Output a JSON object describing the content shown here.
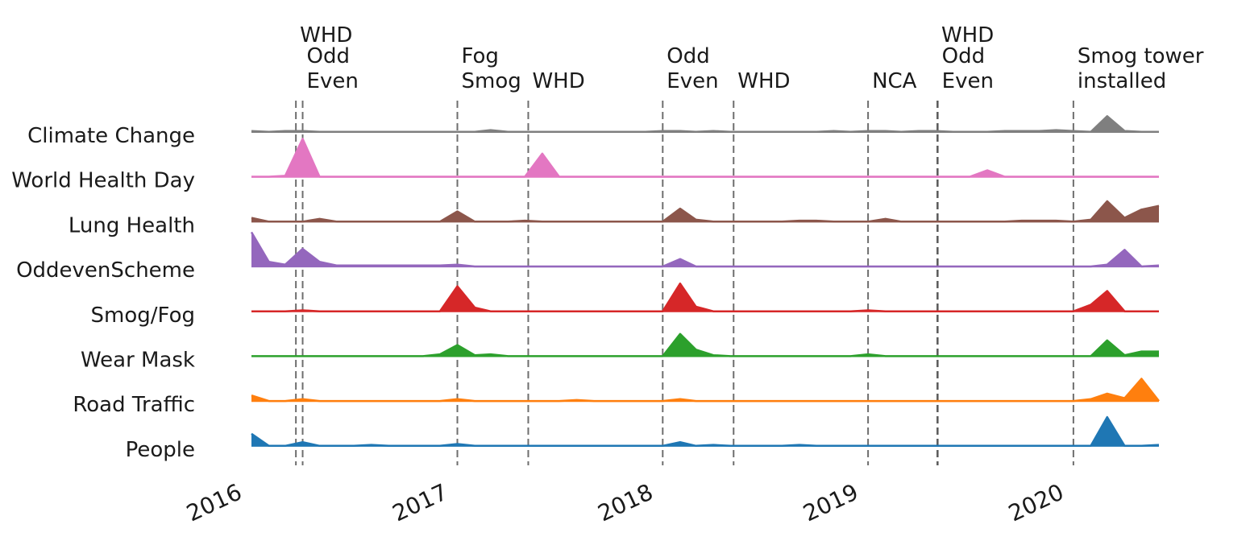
{
  "chart_data": {
    "type": "area",
    "subtype": "ridgeline",
    "title": "",
    "xlabel": "",
    "ylabel": "",
    "x_range": [
      "2016-01",
      "2020-06"
    ],
    "x_ticks": [
      "2016",
      "2017",
      "2018",
      "2019",
      "2020"
    ],
    "months": [
      "2016-01",
      "2016-02",
      "2016-03",
      "2016-04",
      "2016-05",
      "2016-06",
      "2016-07",
      "2016-08",
      "2016-09",
      "2016-10",
      "2016-11",
      "2016-12",
      "2017-01",
      "2017-02",
      "2017-03",
      "2017-04",
      "2017-05",
      "2017-06",
      "2017-07",
      "2017-08",
      "2017-09",
      "2017-10",
      "2017-11",
      "2017-12",
      "2018-01",
      "2018-02",
      "2018-03",
      "2018-04",
      "2018-05",
      "2018-06",
      "2018-07",
      "2018-08",
      "2018-09",
      "2018-10",
      "2018-11",
      "2018-12",
      "2019-01",
      "2019-02",
      "2019-03",
      "2019-04",
      "2019-05",
      "2019-06",
      "2019-07",
      "2019-08",
      "2019-09",
      "2019-10",
      "2019-11",
      "2019-12",
      "2020-01",
      "2020-02",
      "2020-03",
      "2020-04",
      "2020-05",
      "2020-06"
    ],
    "series": [
      {
        "name": "Climate Change",
        "color": "#7f7f7f",
        "values": [
          2,
          1,
          2,
          2,
          1,
          1,
          1,
          1,
          1,
          1,
          1,
          1,
          1,
          1,
          3,
          1,
          1,
          1,
          1,
          1,
          1,
          1,
          1,
          1,
          2,
          2,
          1,
          2,
          1,
          1,
          1,
          1,
          1,
          1,
          2,
          1,
          2,
          2,
          1,
          2,
          2,
          1,
          1,
          1,
          2,
          2,
          2,
          3,
          2,
          1,
          18,
          2,
          1,
          1
        ]
      },
      {
        "name": "World Health Day",
        "color": "#e377c2",
        "values": [
          1,
          1,
          2,
          42,
          1,
          1,
          1,
          1,
          1,
          1,
          1,
          1,
          1,
          1,
          1,
          1,
          1,
          26,
          1,
          1,
          1,
          1,
          1,
          1,
          1,
          1,
          1,
          1,
          1,
          1,
          1,
          1,
          1,
          1,
          1,
          1,
          1,
          1,
          1,
          1,
          1,
          1,
          1,
          8,
          1,
          1,
          1,
          1,
          1,
          1,
          1,
          1,
          1,
          1
        ]
      },
      {
        "name": "Lung Health",
        "color": "#8c564b",
        "values": [
          5,
          1,
          1,
          1,
          4,
          1,
          1,
          1,
          1,
          1,
          1,
          1,
          12,
          1,
          1,
          1,
          2,
          1,
          1,
          1,
          1,
          1,
          1,
          1,
          1,
          15,
          3,
          1,
          1,
          1,
          1,
          1,
          2,
          2,
          1,
          1,
          1,
          4,
          1,
          1,
          1,
          1,
          1,
          1,
          1,
          2,
          2,
          2,
          1,
          3,
          23,
          5,
          14,
          18
        ]
      },
      {
        "name": "OddevenScheme",
        "color": "#9467bd",
        "values": [
          38,
          6,
          3,
          20,
          6,
          2,
          2,
          2,
          2,
          2,
          2,
          2,
          3,
          1,
          1,
          1,
          1,
          1,
          1,
          1,
          1,
          1,
          1,
          1,
          1,
          9,
          1,
          1,
          1,
          1,
          1,
          1,
          1,
          1,
          1,
          1,
          1,
          1,
          1,
          1,
          1,
          1,
          1,
          1,
          1,
          1,
          1,
          1,
          1,
          1,
          3,
          19,
          1,
          2
        ]
      },
      {
        "name": "Smog/Fog",
        "color": "#d62728",
        "values": [
          1,
          1,
          1,
          2,
          1,
          1,
          1,
          1,
          1,
          1,
          1,
          1,
          28,
          5,
          1,
          1,
          1,
          1,
          1,
          1,
          1,
          1,
          1,
          1,
          1,
          31,
          6,
          1,
          1,
          1,
          1,
          1,
          1,
          1,
          1,
          1,
          2,
          1,
          1,
          1,
          1,
          1,
          1,
          1,
          1,
          1,
          1,
          1,
          1,
          8,
          23,
          1,
          1,
          1
        ]
      },
      {
        "name": "Wear Mask",
        "color": "#2ca02c",
        "values": [
          1,
          1,
          1,
          1,
          1,
          1,
          1,
          1,
          1,
          1,
          1,
          3,
          13,
          2,
          3,
          1,
          1,
          1,
          1,
          1,
          1,
          1,
          1,
          1,
          1,
          25,
          8,
          2,
          1,
          1,
          1,
          1,
          1,
          1,
          1,
          1,
          3,
          1,
          1,
          1,
          1,
          1,
          1,
          1,
          1,
          1,
          1,
          1,
          1,
          1,
          18,
          2,
          6,
          6
        ]
      },
      {
        "name": "Road Traffic",
        "color": "#ff7f0e",
        "values": [
          7,
          1,
          1,
          3,
          1,
          1,
          1,
          1,
          1,
          1,
          1,
          1,
          3,
          1,
          1,
          1,
          1,
          1,
          1,
          2,
          1,
          1,
          1,
          1,
          1,
          3,
          1,
          1,
          1,
          1,
          1,
          1,
          1,
          1,
          1,
          1,
          1,
          1,
          1,
          1,
          1,
          1,
          1,
          1,
          1,
          1,
          1,
          1,
          1,
          3,
          9,
          4,
          25,
          1
        ]
      },
      {
        "name": "People",
        "color": "#1f77b4",
        "values": [
          14,
          1,
          1,
          5,
          1,
          1,
          1,
          2,
          1,
          1,
          1,
          1,
          3,
          1,
          1,
          1,
          1,
          1,
          1,
          1,
          1,
          1,
          1,
          1,
          1,
          5,
          1,
          2,
          1,
          1,
          1,
          1,
          2,
          1,
          1,
          1,
          1,
          1,
          1,
          1,
          1,
          1,
          1,
          1,
          1,
          1,
          1,
          1,
          1,
          1,
          32,
          1,
          1,
          2
        ]
      }
    ],
    "events": [
      {
        "date": "2016-03-20",
        "label_lines": [
          "WHD"
        ],
        "style": "dashed"
      },
      {
        "date": "2016-04-01",
        "label_lines": [
          "Odd",
          "Even"
        ],
        "style": "dashed"
      },
      {
        "date": "2017-01-01",
        "label_lines": [
          "Fog",
          "Smog"
        ],
        "style": "dashed"
      },
      {
        "date": "2017-05-07",
        "label_lines": [
          "WHD"
        ],
        "style": "dashed"
      },
      {
        "date": "2018-01-01",
        "label_lines": [
          "Odd",
          "Even"
        ],
        "style": "dashed"
      },
      {
        "date": "2018-05-07",
        "label_lines": [
          "WHD"
        ],
        "style": "dashed"
      },
      {
        "date": "2019-01-01",
        "label_lines": [
          "NCA"
        ],
        "style": "dashed"
      },
      {
        "date": "2019-05-04",
        "label_lines": [
          "WHD"
        ],
        "style": "dashed"
      },
      {
        "date": "2019-05-05",
        "label_lines": [
          "Odd",
          "Even"
        ],
        "style": "dashed"
      },
      {
        "date": "2020-01-01",
        "label_lines": [
          "Smog tower",
          "installed"
        ],
        "style": "dashed"
      }
    ],
    "grid": false,
    "legend": "none"
  }
}
